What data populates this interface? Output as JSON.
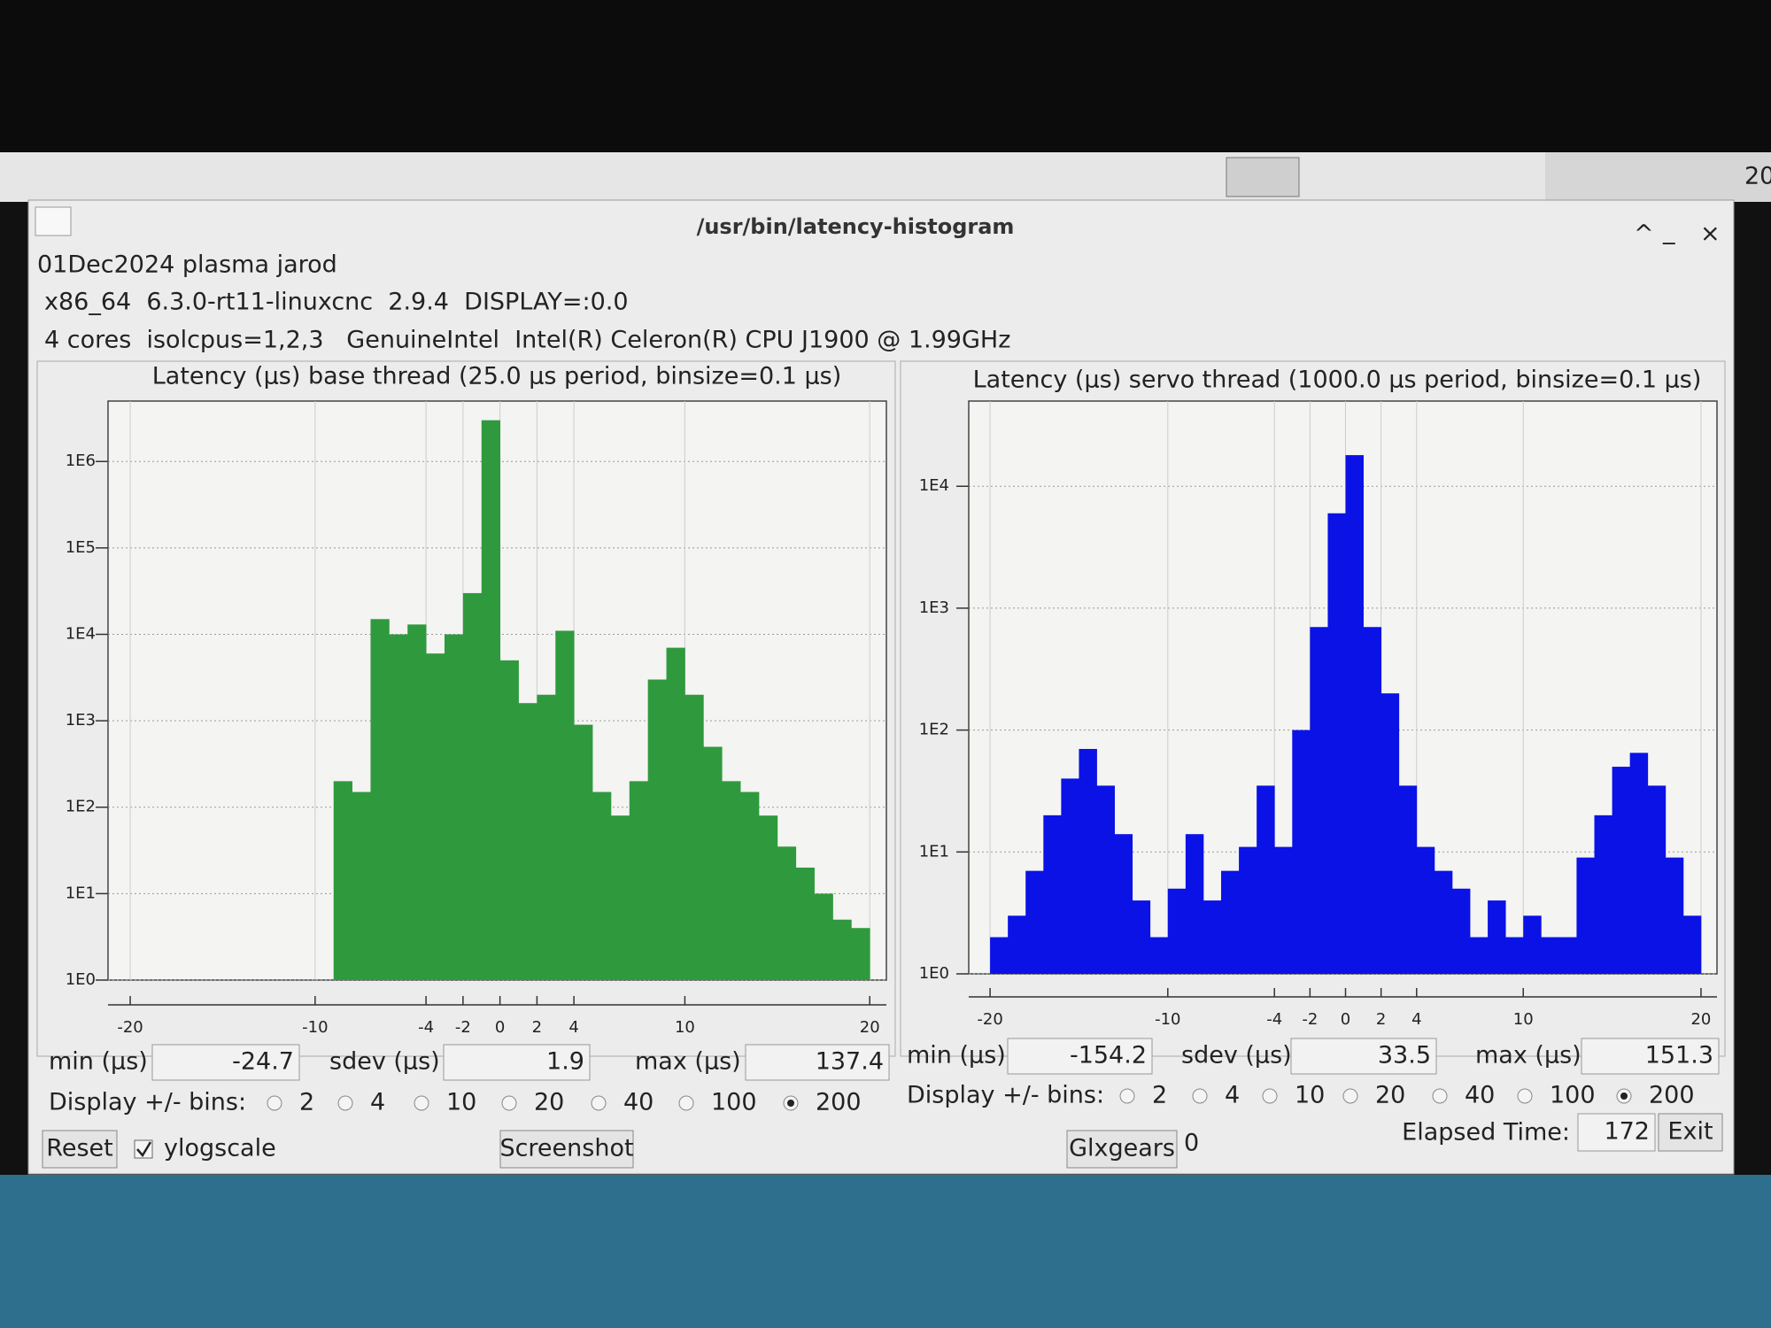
{
  "taskbar": {
    "clock": "20"
  },
  "window": {
    "title": "/usr/bin/latency-histogram"
  },
  "info": [
    "01Dec2024 plasma jarod",
    "x86_64  6.3.0-rt11-linuxcnc  2.9.4  DISPLAY=:0.0",
    "4 cores  isolcpus=1,2,3   GenuineIntel  Intel(R) Celeron(R) CPU J1900 @ 1.99GHz"
  ],
  "chart_data": [
    {
      "type": "histogram",
      "title": "Latency (µs) base thread (25.0 µs period, binsize=0.1 µs)",
      "bins": [
        -20,
        -19,
        -18,
        -17,
        -16,
        -15,
        -14,
        -13,
        -12,
        -11,
        -10,
        -9,
        -8,
        -7,
        -6,
        -5,
        -4,
        -3,
        -2,
        -1,
        0,
        1,
        2,
        3,
        4,
        5,
        6,
        7,
        8,
        9,
        10,
        11,
        12,
        13,
        14,
        15,
        16,
        17,
        18,
        19,
        20
      ],
      "values": [
        0,
        0,
        0,
        0,
        0,
        0,
        0,
        0,
        0,
        0,
        0,
        200,
        150,
        15000,
        10000,
        13000,
        6000,
        10000,
        30000,
        3000000,
        5000,
        1600,
        2000,
        11000,
        900,
        150,
        80,
        200,
        3000,
        7000,
        2000,
        500,
        200,
        150,
        80,
        35,
        20,
        10,
        5,
        4
      ],
      "color": "#2f9a3d",
      "xlim": [
        -21.2,
        20.9
      ],
      "ylim": [
        1,
        5000000
      ],
      "ylog": true,
      "grid": true,
      "xticks": [
        -20,
        -10,
        -4,
        -2,
        0,
        2,
        4,
        10,
        20
      ],
      "yticks": [
        {
          "value": 1,
          "label": "1E0"
        },
        {
          "value": 10,
          "label": "1E1"
        },
        {
          "value": 100,
          "label": "1E2"
        },
        {
          "value": 1000,
          "label": "1E3"
        },
        {
          "value": 10000,
          "label": "1E4"
        },
        {
          "value": 100000,
          "label": "1E5"
        },
        {
          "value": 1000000,
          "label": "1E6"
        }
      ]
    },
    {
      "type": "histogram",
      "title": "Latency (µs) servo thread (1000.0 µs period, binsize=0.1 µs)",
      "bins": [
        -20,
        -19,
        -18,
        -17,
        -16,
        -15,
        -14,
        -13,
        -12,
        -11,
        -10,
        -9,
        -8,
        -7,
        -6,
        -5,
        -4,
        -3,
        -2,
        -1,
        0,
        1,
        2,
        3,
        4,
        5,
        6,
        7,
        8,
        9,
        10,
        11,
        12,
        13,
        14,
        15,
        16,
        17,
        18,
        19,
        20
      ],
      "values": [
        2,
        3,
        7,
        20,
        40,
        70,
        35,
        14,
        4,
        2,
        5,
        14,
        4,
        7,
        11,
        35,
        11,
        100,
        700,
        6000,
        18000,
        700,
        200,
        35,
        11,
        7,
        5,
        2,
        4,
        2,
        3,
        2,
        2,
        9,
        20,
        50,
        65,
        35,
        9,
        3
      ],
      "color": "#0a12e6",
      "xlim": [
        -21.2,
        20.9
      ],
      "ylim": [
        1,
        50000
      ],
      "ylog": true,
      "grid": true,
      "xticks": [
        -20,
        -10,
        -4,
        -2,
        0,
        2,
        4,
        10,
        20
      ],
      "yticks": [
        {
          "value": 1,
          "label": "1E0"
        },
        {
          "value": 10,
          "label": "1E1"
        },
        {
          "value": 100,
          "label": "1E2"
        },
        {
          "value": 1000,
          "label": "1E3"
        },
        {
          "value": 10000,
          "label": "1E4"
        }
      ]
    }
  ],
  "panels": [
    {
      "stats": [
        {
          "label": "min (µs)",
          "value": -24.7
        },
        {
          "label": "sdev (µs)",
          "value": 1.9
        },
        {
          "label": "max (µs)",
          "value": 137.4
        }
      ],
      "bins_label": "Display +/- bins:",
      "bin_options": [
        "2",
        "4",
        "10",
        "20",
        "40",
        "100",
        "200"
      ],
      "selected": 6
    },
    {
      "stats": [
        {
          "label": "min (µs)",
          "value": -154.2
        },
        {
          "label": "sdev (µs)",
          "value": 33.5
        },
        {
          "label": "max (µs)",
          "value": 151.3
        }
      ],
      "bins_label": "Display +/- bins:",
      "bin_options": [
        "2",
        "4",
        "10",
        "20",
        "40",
        "100",
        "200"
      ],
      "selected": 6
    }
  ],
  "controls": {
    "reset": "Reset",
    "ylogscale": "ylogscale",
    "ylogscale_checked": true,
    "screenshot": "Screenshot",
    "glxgears": "Glxgears",
    "glxgears_count": 0,
    "elapsed_label": "Elapsed Time:",
    "elapsed": 172,
    "exit": "Exit"
  }
}
